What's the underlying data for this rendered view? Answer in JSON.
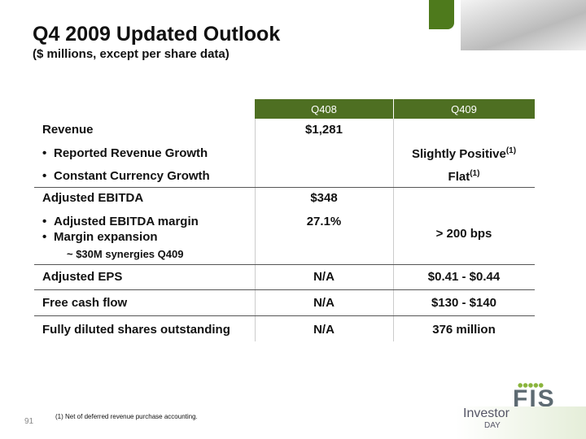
{
  "header": {
    "title": "Q4 2009 Updated Outlook",
    "subtitle": "($ millions, except per share data)"
  },
  "table": {
    "columns": [
      "Q408",
      "Q409"
    ],
    "rows": [
      {
        "label": "Revenue",
        "q408": "$1,281"
      },
      {
        "label": "Reported Revenue Growth",
        "q409": "Slightly Positive",
        "q409_note": "(1)"
      },
      {
        "label": "Constant Currency Growth",
        "q409": "Flat",
        "q409_note": "(1)"
      },
      {
        "label": "Adjusted EBITDA",
        "q408": "$348"
      },
      {
        "label": "Adjusted EBITDA margin",
        "q408": "27.1%"
      },
      {
        "label": "Margin expansion",
        "q409": "> 200 bps"
      },
      {
        "label": "~ $30M synergies Q409"
      },
      {
        "label": "Adjusted EPS",
        "q408": "N/A",
        "q409": "$0.41 - $0.44"
      },
      {
        "label": "Free cash flow",
        "q408": "N/A",
        "q409": "$130 - $140"
      },
      {
        "label": "Fully diluted shares outstanding",
        "q408": "N/A",
        "q409": "376 million"
      }
    ]
  },
  "footer": {
    "footnote": "(1)  Net of deferred revenue purchase accounting.",
    "page": "91",
    "logo": "FIS",
    "badge_top": "Investor",
    "badge_bottom": "DAY"
  }
}
